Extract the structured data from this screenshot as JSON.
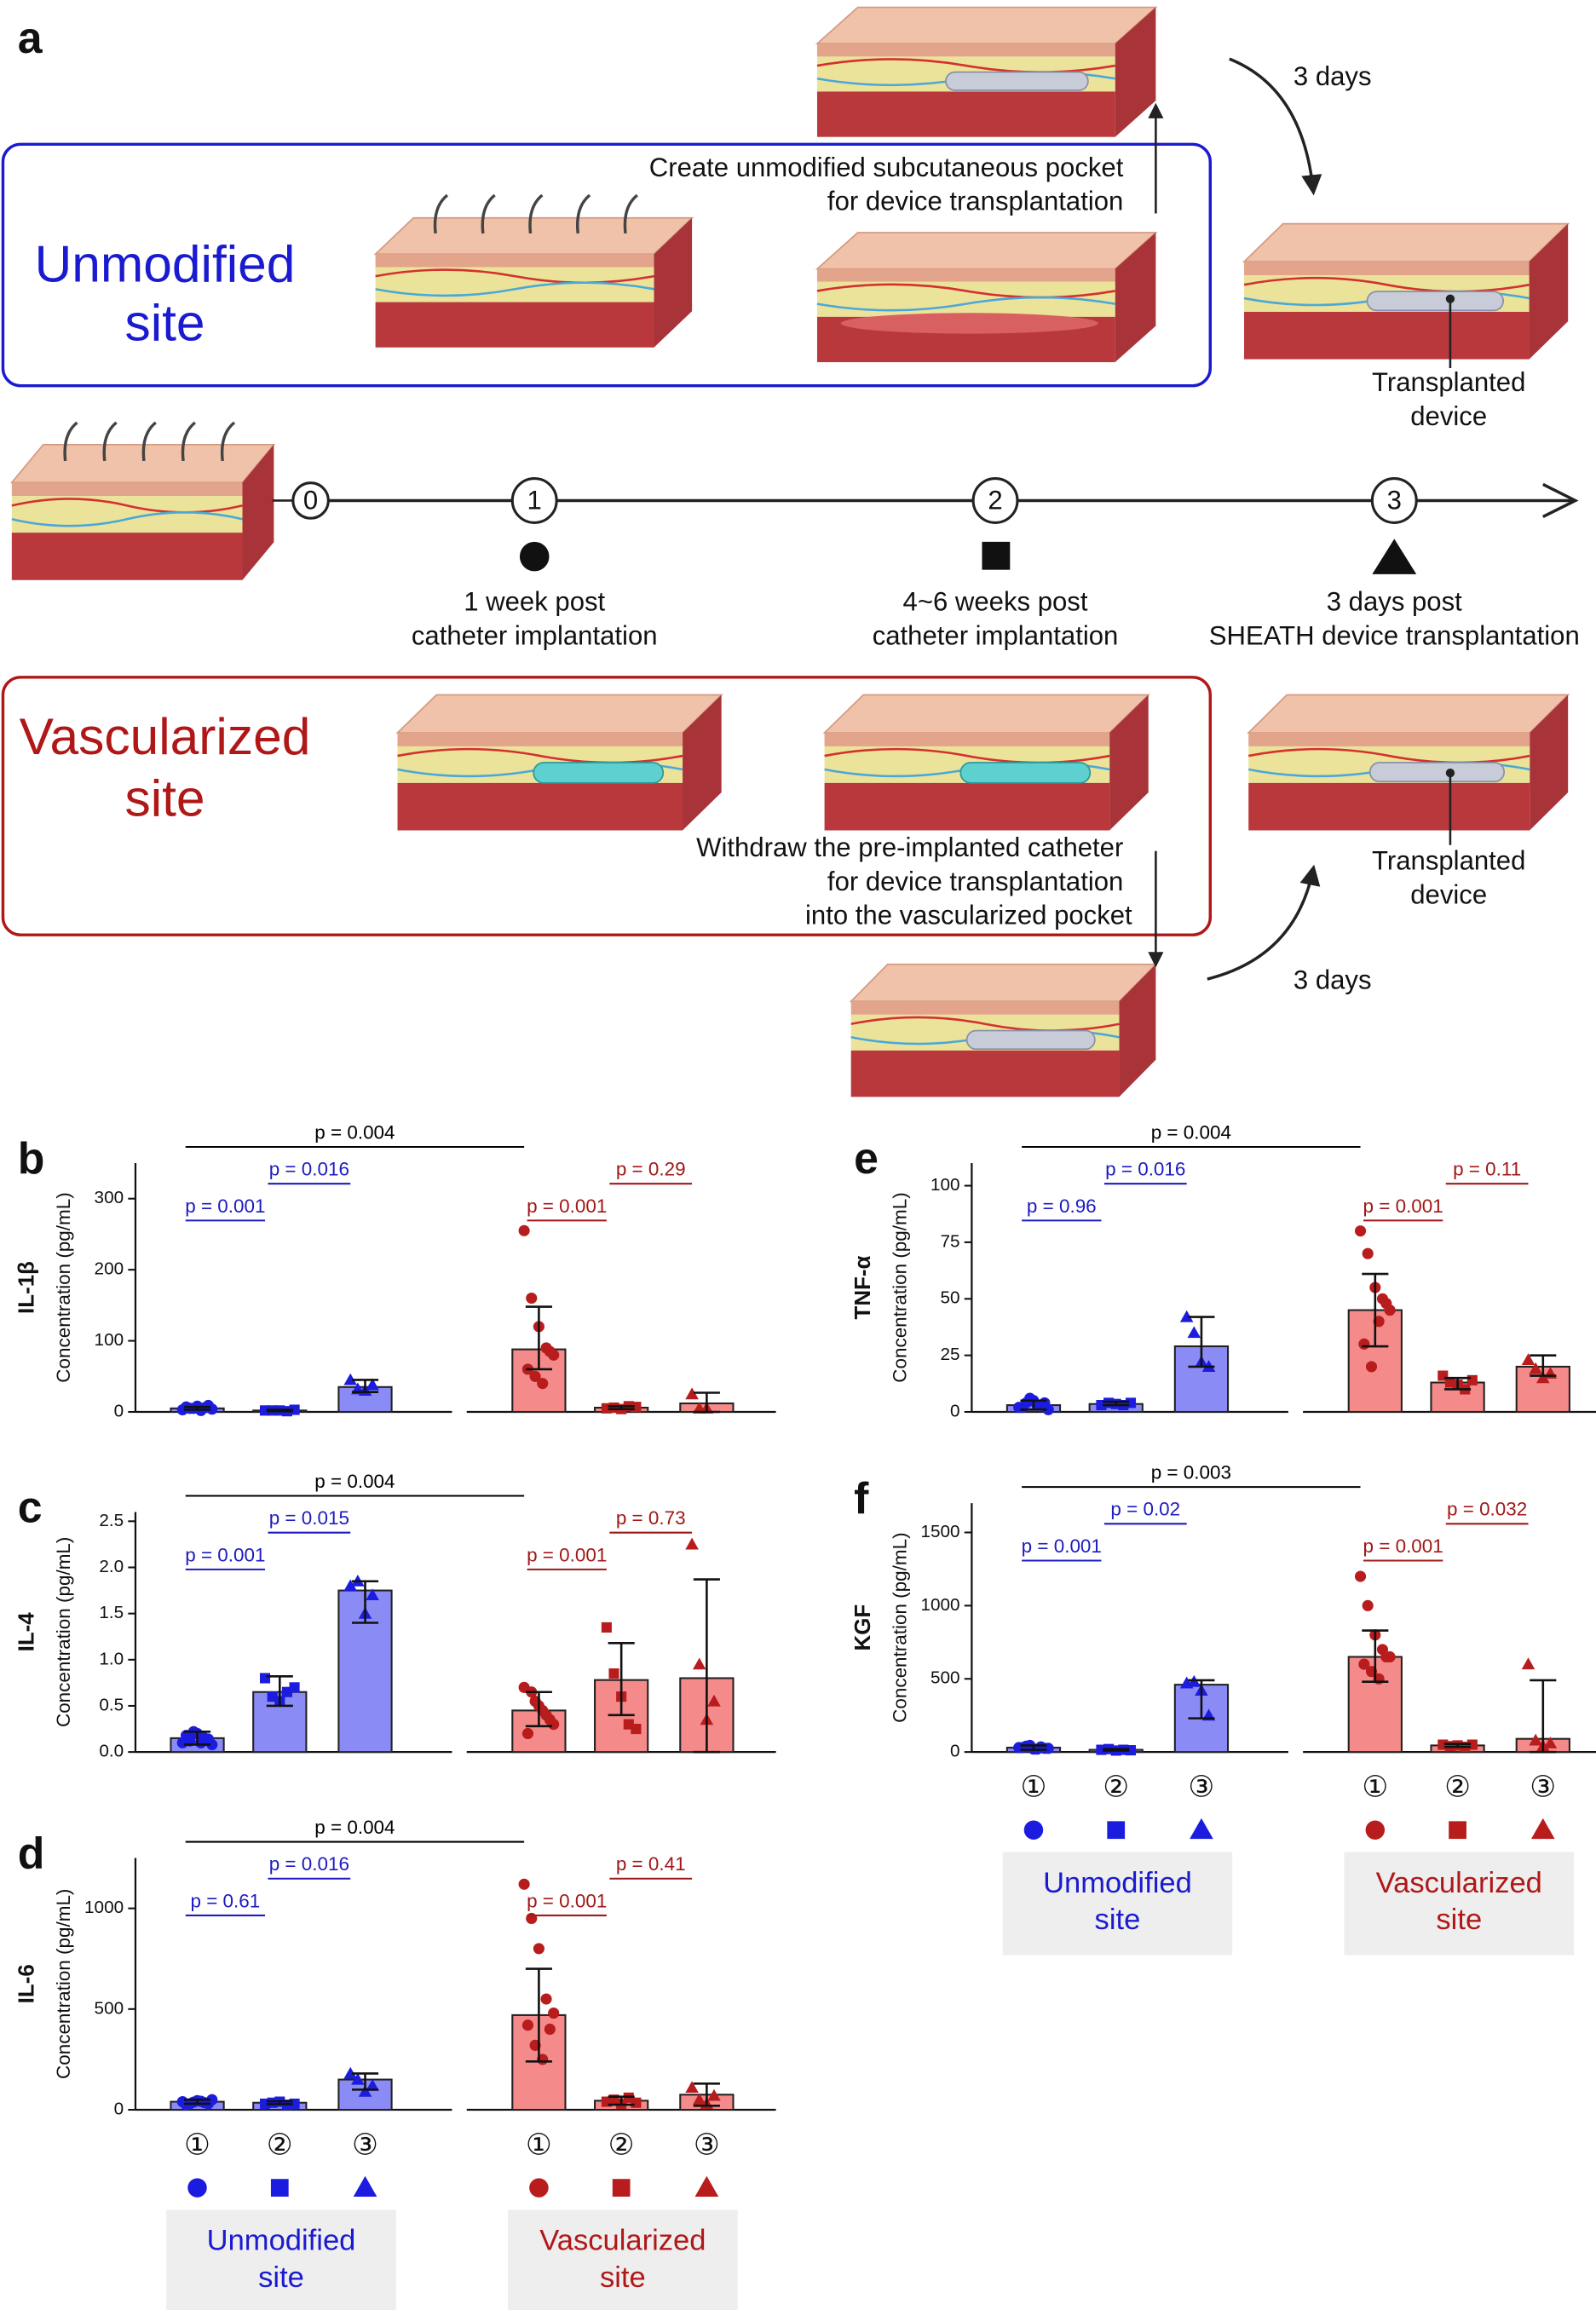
{
  "panel_a": {
    "label": "a",
    "unmodified_site": [
      "Unmodified",
      "site"
    ],
    "vascularized_site": [
      "Vascularized",
      "site"
    ],
    "create_pocket": [
      "Create unmodified subcutaneous pocket",
      "for device transplantation"
    ],
    "withdraw": [
      "Withdraw the pre-implanted catheter",
      "for device transplantation",
      "into the vascularized pocket"
    ],
    "wait": [
      "3 days",
      "3 days"
    ],
    "transplanted_device": [
      [
        "Transplanted",
        "device"
      ],
      [
        "Transplanted",
        "device"
      ]
    ],
    "timeline_steps": [
      0,
      1,
      2,
      3
    ],
    "stage_labels": [
      [
        "1 week post",
        "catheter implantation"
      ],
      [
        "4~6 weeks post",
        "catheter implantation"
      ],
      [
        "3 days post",
        "SHEATH device transplantation"
      ]
    ]
  },
  "chart_data": [
    {
      "type": "bar",
      "panel": "b",
      "title": "IL-1β",
      "ylabel": "Concentration (pg/mL)",
      "categories": [
        null,
        null,
        null,
        null,
        null,
        null
      ],
      "bar_colors": [
        "#8b8bf5",
        "#8b8bf5",
        "#8b8bf5",
        "#f48a8a",
        "#f48a8a",
        "#f48a8a"
      ],
      "point_colors": [
        "#1c1ce0",
        "#1c1ce0",
        "#1c1ce0",
        "#b81c1c",
        "#b81c1c",
        "#b81c1c"
      ],
      "values": [
        5,
        2,
        35,
        88,
        6,
        12
      ],
      "whisker_low": [
        3,
        1,
        28,
        60,
        4,
        0
      ],
      "whisker_high": [
        7,
        3,
        45,
        148,
        8,
        27
      ],
      "points": [
        [
          3,
          5,
          8,
          6,
          4,
          7,
          5,
          2,
          9
        ],
        [
          2,
          2,
          2,
          1,
          3
        ],
        [
          45,
          32,
          30,
          38
        ],
        [
          255,
          160,
          120,
          90,
          80,
          60,
          50,
          40,
          85
        ],
        [
          5,
          6,
          4,
          8,
          7
        ],
        [
          25,
          5,
          5
        ]
      ],
      "ylim": [
        0,
        350
      ],
      "yticks": [
        0,
        100,
        200,
        300
      ],
      "annotations": [
        {
          "text": "p = 0.004",
          "from": 0,
          "to": 3,
          "color": "#000000"
        },
        {
          "text": "p = 0.001",
          "from": 0,
          "to": 1,
          "color": "#1c1cc0"
        },
        {
          "text": "p = 0.016",
          "from": 1,
          "to": 2,
          "color": "#1c1cc0"
        },
        {
          "text": "p = 0.001",
          "from": 3,
          "to": 4,
          "color": "#a01818"
        },
        {
          "text": "p = 0.29",
          "from": 4,
          "to": 5,
          "color": "#a01818"
        }
      ]
    },
    {
      "type": "bar",
      "panel": "c",
      "title": "IL-4",
      "ylabel": "Concentration (pg/mL)",
      "categories": [
        null,
        null,
        null,
        null,
        null,
        null
      ],
      "bar_colors": [
        "#8b8bf5",
        "#8b8bf5",
        "#8b8bf5",
        "#f48a8a",
        "#f48a8a",
        "#f48a8a"
      ],
      "point_colors": [
        "#1c1ce0",
        "#1c1ce0",
        "#1c1ce0",
        "#b81c1c",
        "#b81c1c",
        "#b81c1c"
      ],
      "values": [
        0.15,
        0.65,
        1.75,
        0.45,
        0.78,
        0.8
      ],
      "whisker_low": [
        0.08,
        0.5,
        1.4,
        0.28,
        0.4,
        0
      ],
      "whisker_high": [
        0.22,
        0.82,
        1.85,
        0.65,
        1.18,
        1.87
      ],
      "points": [
        [
          0.1,
          0.12,
          0.2,
          0.15,
          0.08,
          0.18,
          0.22,
          0.1,
          0.14
        ],
        [
          0.8,
          0.6,
          0.55,
          0.65,
          0.7
        ],
        [
          1.8,
          1.85,
          1.5,
          1.7
        ],
        [
          0.7,
          0.65,
          0.5,
          0.4,
          0.3,
          0.2,
          0.55,
          0.45,
          0.35
        ],
        [
          1.35,
          0.85,
          0.6,
          0.3,
          0.25
        ],
        [
          2.25,
          0.95,
          0.35,
          0.55
        ]
      ],
      "ylim": [
        0,
        2.6
      ],
      "yticks": [
        {
          "value": 0,
          "label": "0.0"
        },
        0.5,
        {
          "value": 1,
          "label": "1.0"
        },
        1.5,
        {
          "value": 2,
          "label": "2.0"
        },
        2.5
      ],
      "annotations": [
        {
          "text": "p = 0.004",
          "from": 0,
          "to": 3,
          "color": "#000000"
        },
        {
          "text": "p = 0.001",
          "from": 0,
          "to": 1,
          "color": "#1c1cc0"
        },
        {
          "text": "p = 0.015",
          "from": 1,
          "to": 2,
          "color": "#1c1cc0"
        },
        {
          "text": "p = 0.001",
          "from": 3,
          "to": 4,
          "color": "#a01818"
        },
        {
          "text": "p = 0.73",
          "from": 4,
          "to": 5,
          "color": "#a01818"
        }
      ]
    },
    {
      "type": "bar",
      "panel": "d",
      "title": "IL-6",
      "ylabel": "Concentration (pg/mL)",
      "categories": [
        "①",
        "②",
        "③",
        "①",
        "②",
        "③"
      ],
      "groups": [
        [
          "Unmodified",
          "site"
        ],
        [
          "Vascularized",
          "site"
        ]
      ],
      "bar_colors": [
        "#8b8bf5",
        "#8b8bf5",
        "#8b8bf5",
        "#f48a8a",
        "#f48a8a",
        "#f48a8a"
      ],
      "point_colors": [
        "#1c1ce0",
        "#1c1ce0",
        "#1c1ce0",
        "#b81c1c",
        "#b81c1c",
        "#b81c1c"
      ],
      "values": [
        40,
        35,
        150,
        470,
        45,
        75
      ],
      "whisker_low": [
        30,
        28,
        100,
        240,
        25,
        20
      ],
      "whisker_high": [
        50,
        42,
        180,
        700,
        65,
        130
      ],
      "points": [
        [
          40,
          30,
          45,
          35,
          50,
          25,
          38,
          42,
          30
        ],
        [
          30,
          35,
          40,
          25,
          30
        ],
        [
          180,
          150,
          90,
          120
        ],
        [
          1120,
          950,
          800,
          550,
          480,
          420,
          320,
          250,
          400
        ],
        [
          40,
          50,
          30,
          60,
          35
        ],
        [
          110,
          50,
          30,
          70
        ]
      ],
      "ylim": [
        0,
        1250
      ],
      "yticks": [
        0,
        500,
        1000
      ],
      "annotations": [
        {
          "text": "p = 0.004",
          "from": 0,
          "to": 3,
          "color": "#000000"
        },
        {
          "text": "p = 0.61",
          "from": 0,
          "to": 1,
          "color": "#1c1cc0"
        },
        {
          "text": "p = 0.016",
          "from": 1,
          "to": 2,
          "color": "#1c1cc0"
        },
        {
          "text": "p = 0.001",
          "from": 3,
          "to": 4,
          "color": "#a01818"
        },
        {
          "text": "p = 0.41",
          "from": 4,
          "to": 5,
          "color": "#a01818"
        }
      ]
    },
    {
      "type": "bar",
      "panel": "e",
      "title": "TNF-α",
      "ylabel": "Concentration (pg/mL)",
      "categories": [
        null,
        null,
        null,
        null,
        null,
        null
      ],
      "bar_colors": [
        "#8b8bf5",
        "#8b8bf5",
        "#8b8bf5",
        "#f48a8a",
        "#f48a8a",
        "#f48a8a"
      ],
      "point_colors": [
        "#1c1ce0",
        "#1c1ce0",
        "#1c1ce0",
        "#b81c1c",
        "#b81c1c",
        "#b81c1c"
      ],
      "values": [
        3,
        3.5,
        29,
        45,
        13,
        20
      ],
      "whisker_low": [
        1,
        3,
        20,
        29,
        10,
        16
      ],
      "whisker_high": [
        5,
        4.5,
        42,
        61,
        15,
        25
      ],
      "points": [
        [
          2,
          4,
          5,
          3,
          1,
          2,
          6,
          3,
          4
        ],
        [
          3,
          4,
          3.5,
          3,
          4
        ],
        [
          42,
          35,
          22,
          20
        ],
        [
          80,
          70,
          55,
          50,
          45,
          30,
          20,
          40,
          48
        ],
        [
          16,
          13,
          12,
          10,
          14
        ],
        [
          23,
          19,
          15,
          17
        ]
      ],
      "ylim": [
        0,
        110
      ],
      "yticks": [
        0,
        25,
        50,
        75,
        100
      ],
      "annotations": [
        {
          "text": "p = 0.004",
          "from": 0,
          "to": 3,
          "color": "#000000"
        },
        {
          "text": "p = 0.96",
          "from": 0,
          "to": 1,
          "color": "#1c1cc0"
        },
        {
          "text": "p = 0.016",
          "from": 1,
          "to": 2,
          "color": "#1c1cc0"
        },
        {
          "text": "p = 0.001",
          "from": 3,
          "to": 4,
          "color": "#a01818"
        },
        {
          "text": "p = 0.11",
          "from": 4,
          "to": 5,
          "color": "#a01818"
        }
      ]
    },
    {
      "type": "bar",
      "panel": "f",
      "title": "KGF",
      "ylabel": "Concentration (pg/mL)",
      "categories": [
        "①",
        "②",
        "③",
        "①",
        "②",
        "③"
      ],
      "groups": [
        [
          "Unmodified",
          "site"
        ],
        [
          "Vascularized",
          "site"
        ]
      ],
      "bar_colors": [
        "#8b8bf5",
        "#8b8bf5",
        "#8b8bf5",
        "#f48a8a",
        "#f48a8a",
        "#f48a8a"
      ],
      "point_colors": [
        "#1c1ce0",
        "#1c1ce0",
        "#1c1ce0",
        "#b81c1c",
        "#b81c1c",
        "#b81c1c"
      ],
      "values": [
        30,
        15,
        460,
        650,
        45,
        90
      ],
      "whisker_low": [
        15,
        10,
        230,
        480,
        35,
        0
      ],
      "whisker_high": [
        45,
        20,
        490,
        830,
        55,
        490
      ],
      "points": [
        [
          30,
          40,
          20,
          35,
          25,
          30,
          45,
          20,
          25
        ],
        [
          15,
          20,
          10,
          15,
          12
        ],
        [
          470,
          480,
          420,
          250
        ],
        [
          1200,
          1000,
          800,
          700,
          650,
          600,
          550,
          500,
          650
        ],
        [
          50,
          40,
          45,
          35,
          50
        ],
        [
          600,
          80,
          40,
          60
        ]
      ],
      "ylim": [
        0,
        1700
      ],
      "yticks": [
        0,
        500,
        1000,
        1500
      ],
      "annotations": [
        {
          "text": "p = 0.003",
          "from": 0,
          "to": 3,
          "color": "#000000"
        },
        {
          "text": "p = 0.001",
          "from": 0,
          "to": 1,
          "color": "#1c1cc0"
        },
        {
          "text": "p = 0.02",
          "from": 1,
          "to": 2,
          "color": "#1c1cc0"
        },
        {
          "text": "p = 0.001",
          "from": 3,
          "to": 4,
          "color": "#a01818"
        },
        {
          "text": "p = 0.032",
          "from": 4,
          "to": 5,
          "color": "#a01818"
        }
      ]
    }
  ]
}
